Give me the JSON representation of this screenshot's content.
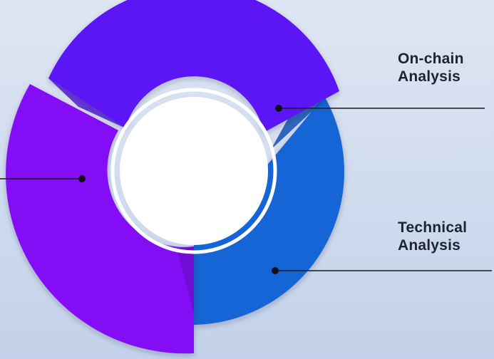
{
  "segments": [
    {
      "id": "onchain",
      "label_lines": [
        "On-chain",
        "Analysis"
      ],
      "color": "#5b12f5"
    },
    {
      "id": "technical",
      "label_lines": [
        "Technical",
        "Analysis"
      ],
      "color": "#1565d6"
    },
    {
      "id": "left",
      "label_lines": [],
      "color": "#8310f5"
    }
  ],
  "center": {
    "fill": "#ffffff",
    "ring": "#ffffff"
  },
  "connector_color": "#1a1a1a"
}
